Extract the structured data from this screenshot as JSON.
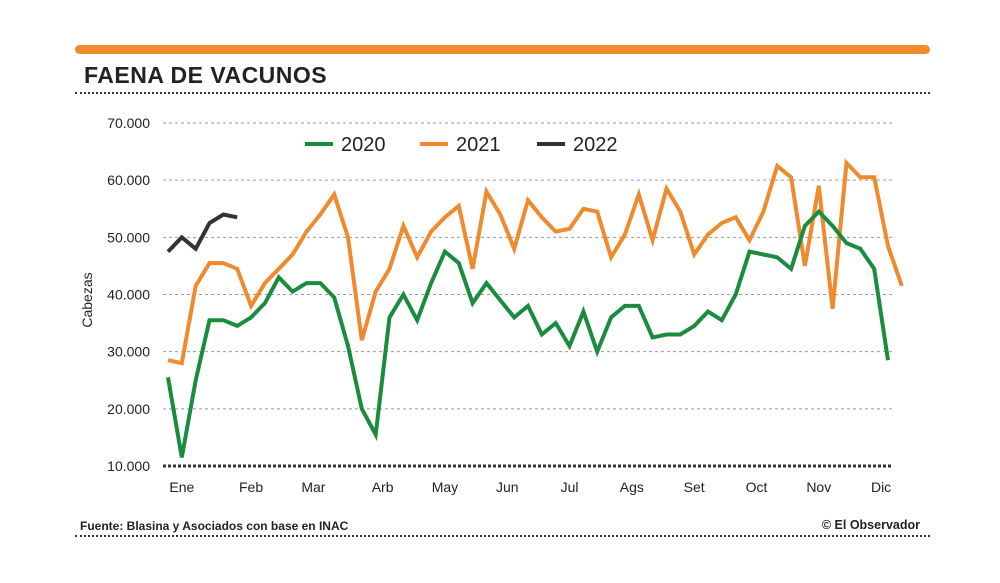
{
  "header": {
    "title": "FAENA DE VACUNOS",
    "source": "Fuente: Blasina y Asociados con base en INAC",
    "credit": "© El Observador"
  },
  "colors": {
    "accent": "#f08a2e",
    "s2020": "#1b8c3f",
    "s2021": "#f08a2e",
    "s2022": "#333333"
  },
  "chart_data": {
    "type": "line",
    "title": "FAENA DE VACUNOS",
    "ylabel": "Cabezas",
    "xlabel": "",
    "ylim": [
      10000,
      70000
    ],
    "yticks": [
      10000,
      20000,
      30000,
      40000,
      50000,
      60000,
      70000
    ],
    "ytick_labels": [
      "10.000",
      "20.000",
      "30.000",
      "40.000",
      "50.000",
      "60.000",
      "70.000"
    ],
    "x_unit": "week",
    "xlim": [
      1,
      53
    ],
    "month_labels": [
      "Ene",
      "Feb",
      "Mar",
      "Arb",
      "May",
      "Jun",
      "Jul",
      "Ags",
      "Set",
      "Oct",
      "Nov",
      "Dic"
    ],
    "month_tick_weeks": [
      2,
      7,
      11.5,
      16.5,
      21,
      25.5,
      30,
      34.5,
      39,
      43.5,
      48,
      52.5
    ],
    "grid": true,
    "legend": "top",
    "series": [
      {
        "name": "2020",
        "color": "#1b8c3f",
        "values": [
          25500,
          11500,
          25000,
          35500,
          35500,
          34500,
          36000,
          38500,
          43000,
          40500,
          42000,
          42000,
          39500,
          31000,
          20000,
          15500,
          36000,
          40000,
          35500,
          42000,
          47500,
          45500,
          38500,
          42000,
          39000,
          36000,
          38000,
          33000,
          35000,
          31000,
          37000,
          30000,
          36000,
          38000,
          38000,
          32500,
          33000,
          33000,
          34500,
          37000,
          35500,
          40000,
          47500,
          47000,
          46500,
          44500,
          52000,
          54500,
          52000,
          49000,
          48000,
          44500,
          28500
        ]
      },
      {
        "name": "2021",
        "color": "#f08a2e",
        "values": [
          28500,
          28000,
          41500,
          45500,
          45500,
          44500,
          38000,
          42000,
          44500,
          47000,
          51000,
          54000,
          57500,
          50000,
          32000,
          40500,
          44500,
          52000,
          46500,
          51000,
          53500,
          55500,
          44500,
          58000,
          54000,
          48000,
          56500,
          53500,
          51000,
          51500,
          55000,
          54500,
          46500,
          50500,
          57500,
          49500,
          58500,
          54500,
          47000,
          50500,
          52500,
          53500,
          49500,
          54500,
          62500,
          60500,
          45000,
          59000,
          37500,
          63000,
          60500,
          60500,
          48500,
          41500
        ]
      },
      {
        "name": "2022",
        "color": "#333333",
        "values": [
          47500,
          50000,
          48000,
          52500,
          54000,
          53500
        ]
      }
    ]
  }
}
